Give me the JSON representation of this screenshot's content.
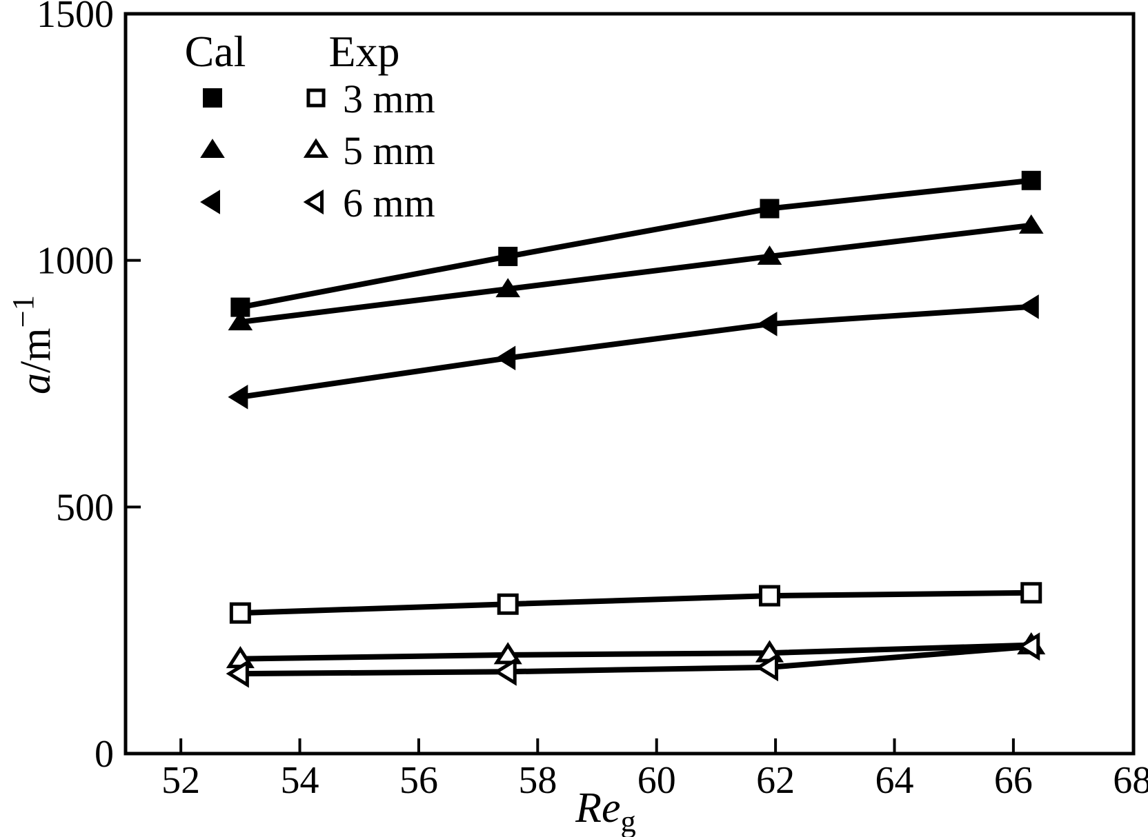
{
  "colors": {
    "ink": "#000000",
    "background": "#ffffff"
  },
  "chart_data": {
    "type": "line",
    "title": "",
    "x": [
      53.0,
      57.5,
      61.9,
      66.3
    ],
    "xlabel": {
      "italic": "Re",
      "sub": "g"
    },
    "ylabel": {
      "italic": "a",
      "rest": "/m",
      "sup": "−1"
    },
    "xlim": [
      51.07,
      68.02
    ],
    "ylim": [
      0,
      1500
    ],
    "x_ticks": [
      "52",
      "54",
      "56",
      "58",
      "60",
      "62",
      "64",
      "66",
      "68"
    ],
    "x_tick_values": [
      52,
      54,
      56,
      58,
      60,
      62,
      64,
      66,
      68
    ],
    "y_ticks": [
      "0",
      "500",
      "1000",
      "1500"
    ],
    "y_tick_values": [
      0,
      500,
      1000,
      1500
    ],
    "grid": false,
    "legend": {
      "position": "top-left-inside",
      "col_headers": [
        "Cal",
        "Exp"
      ],
      "rows": [
        {
          "label": "3 mm",
          "marker": "square"
        },
        {
          "label": "5 mm",
          "marker": "triangle-up"
        },
        {
          "label": "6 mm",
          "marker": "triangle-left"
        }
      ]
    },
    "series": [
      {
        "name": "Cal 3 mm",
        "group": "Cal",
        "marker": "square",
        "filled": true,
        "values": [
          905,
          1008,
          1105,
          1162
        ]
      },
      {
        "name": "Cal 5 mm",
        "group": "Cal",
        "marker": "triangle-up",
        "filled": true,
        "values": [
          875,
          942,
          1008,
          1071
        ]
      },
      {
        "name": "Cal 6 mm",
        "group": "Cal",
        "marker": "triangle-left",
        "filled": true,
        "values": [
          723,
          802,
          871,
          906
        ]
      },
      {
        "name": "Exp 3 mm",
        "group": "Exp",
        "marker": "square",
        "filled": false,
        "values": [
          285,
          303,
          320,
          326
        ]
      },
      {
        "name": "Exp 5 mm",
        "group": "Exp",
        "marker": "triangle-up",
        "filled": false,
        "values": [
          192,
          200,
          204,
          220
        ]
      },
      {
        "name": "Exp 6 mm",
        "group": "Exp",
        "marker": "triangle-left",
        "filled": false,
        "values": [
          162,
          166,
          175,
          217
        ]
      }
    ]
  }
}
